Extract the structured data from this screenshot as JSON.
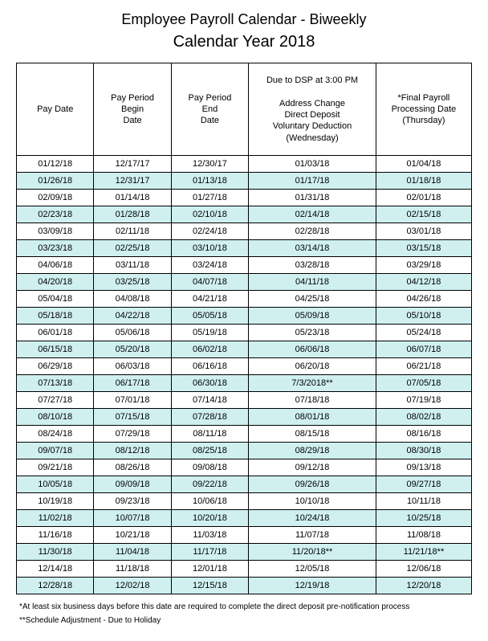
{
  "title_line1": "Employee Payroll Calendar - Biweekly",
  "title_line2": "Calendar Year 2018",
  "table": {
    "type": "table",
    "alt_row_color": "#d0f0f0",
    "border_color": "#000000",
    "columns": [
      "Pay Date",
      "Pay Period\nBegin\nDate",
      "Pay Period\nEnd\nDate",
      "Due to DSP at 3:00 PM\n\nAddress Change\nDirect Deposit\nVoluntary Deduction\n(Wednesday)",
      "*Final Payroll\nProcessing Date\n(Thursday)"
    ],
    "rows": [
      [
        "01/12/18",
        "12/17/17",
        "12/30/17",
        "01/03/18",
        "01/04/18"
      ],
      [
        "01/26/18",
        "12/31/17",
        "01/13/18",
        "01/17/18",
        "01/18/18"
      ],
      [
        "02/09/18",
        "01/14/18",
        "01/27/18",
        "01/31/18",
        "02/01/18"
      ],
      [
        "02/23/18",
        "01/28/18",
        "02/10/18",
        "02/14/18",
        "02/15/18"
      ],
      [
        "03/09/18",
        "02/11/18",
        "02/24/18",
        "02/28/18",
        "03/01/18"
      ],
      [
        "03/23/18",
        "02/25/18",
        "03/10/18",
        "03/14/18",
        "03/15/18"
      ],
      [
        "04/06/18",
        "03/11/18",
        "03/24/18",
        "03/28/18",
        "03/29/18"
      ],
      [
        "04/20/18",
        "03/25/18",
        "04/07/18",
        "04/11/18",
        "04/12/18"
      ],
      [
        "05/04/18",
        "04/08/18",
        "04/21/18",
        "04/25/18",
        "04/26/18"
      ],
      [
        "05/18/18",
        "04/22/18",
        "05/05/18",
        "05/09/18",
        "05/10/18"
      ],
      [
        "06/01/18",
        "05/06/18",
        "05/19/18",
        "05/23/18",
        "05/24/18"
      ],
      [
        "06/15/18",
        "05/20/18",
        "06/02/18",
        "06/06/18",
        "06/07/18"
      ],
      [
        "06/29/18",
        "06/03/18",
        "06/16/18",
        "06/20/18",
        "06/21/18"
      ],
      [
        "07/13/18",
        "06/17/18",
        "06/30/18",
        "7/3/2018**",
        "07/05/18"
      ],
      [
        "07/27/18",
        "07/01/18",
        "07/14/18",
        "07/18/18",
        "07/19/18"
      ],
      [
        "08/10/18",
        "07/15/18",
        "07/28/18",
        "08/01/18",
        "08/02/18"
      ],
      [
        "08/24/18",
        "07/29/18",
        "08/11/18",
        "08/15/18",
        "08/16/18"
      ],
      [
        "09/07/18",
        "08/12/18",
        "08/25/18",
        "08/29/18",
        "08/30/18"
      ],
      [
        "09/21/18",
        "08/26/18",
        "09/08/18",
        "09/12/18",
        "09/13/18"
      ],
      [
        "10/05/18",
        "09/09/18",
        "09/22/18",
        "09/26/18",
        "09/27/18"
      ],
      [
        "10/19/18",
        "09/23/18",
        "10/06/18",
        "10/10/18",
        "10/11/18"
      ],
      [
        "11/02/18",
        "10/07/18",
        "10/20/18",
        "10/24/18",
        "10/25/18"
      ],
      [
        "11/16/18",
        "10/21/18",
        "11/03/18",
        "11/07/18",
        "11/08/18"
      ],
      [
        "11/30/18",
        "11/04/18",
        "11/17/18",
        "11/20/18**",
        "11/21/18**"
      ],
      [
        "12/14/18",
        "11/18/18",
        "12/01/18",
        "12/05/18",
        "12/06/18"
      ],
      [
        "12/28/18",
        "12/02/18",
        "12/15/18",
        "12/19/18",
        "12/20/18"
      ]
    ]
  },
  "footnote1": "*At least six business days before this date are required to complete the direct deposit pre-notification process",
  "footnote2": "**Schedule Adjustment - Due to Holiday"
}
